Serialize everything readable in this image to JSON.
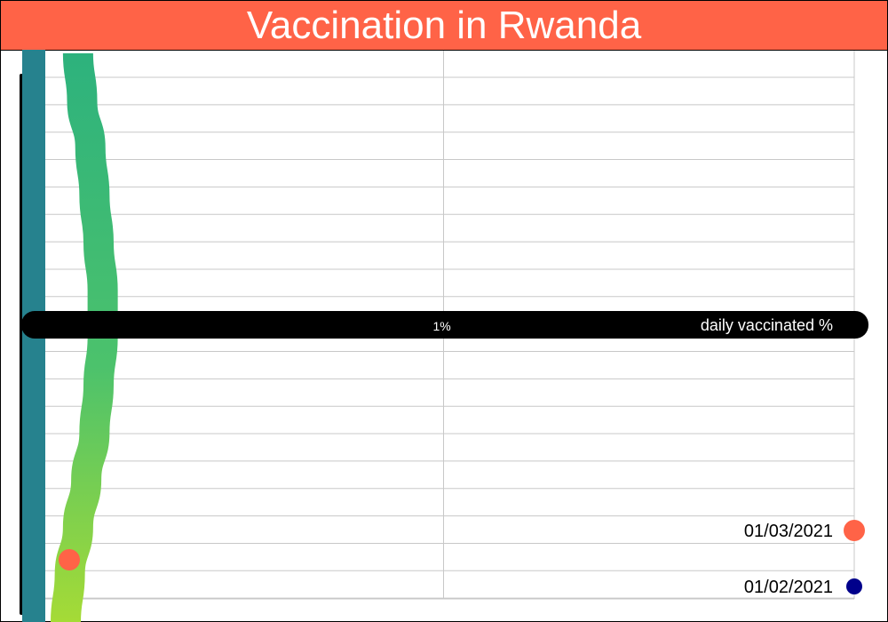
{
  "colors": {
    "title_bg": "#ff6347",
    "grid": "#c8c8c8",
    "axis_bar": "#000000",
    "left_line": "#26828e",
    "marker_now": "#ff6347",
    "marker_prev": "#00008b",
    "gradient_top": "#2db27d",
    "gradient_mid": "#4cc26c",
    "gradient_bottom": "#a5db36"
  },
  "chart_data": {
    "type": "line",
    "title": "Vaccination in Rwanda",
    "xlabel": "daily vaccinated %",
    "x_ticks": [
      {
        "value": 1,
        "label": "1%"
      }
    ],
    "xlim": [
      0,
      2
    ],
    "grid": true,
    "date_range": [
      "01/02/2021",
      "01/03/2021"
    ],
    "series": [
      {
        "values": [
          0.11,
          0.12,
          0.14,
          0.15,
          0.16,
          0.17,
          0.17,
          0.16,
          0.15,
          0.13,
          0.11,
          0.09,
          0.08
        ]
      }
    ],
    "legend": {
      "position": "bottom-right",
      "items": [
        {
          "label": "01/03/2021",
          "color": "#ff6347",
          "size": "large"
        },
        {
          "label": "01/02/2021",
          "color": "#00008b",
          "size": "small"
        }
      ]
    }
  }
}
